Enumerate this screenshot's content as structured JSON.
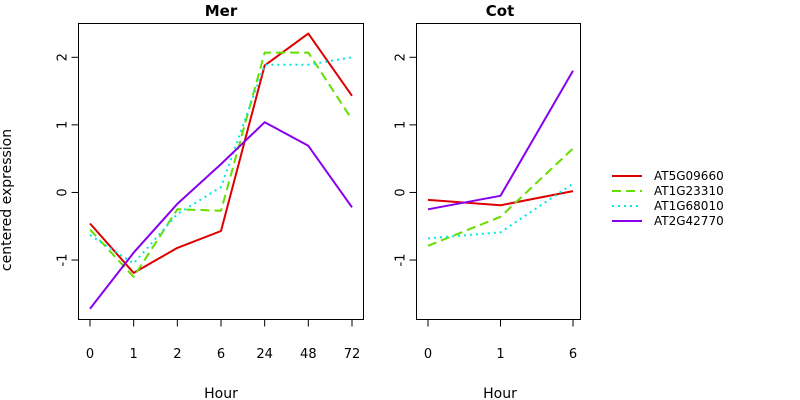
{
  "chart_data": [
    {
      "type": "line",
      "title": "Mer",
      "xlabel": "Hour",
      "ylabel": "centered expression",
      "categories": [
        "0",
        "1",
        "2",
        "6",
        "24",
        "48",
        "72"
      ],
      "yticks": [
        "-1",
        "0",
        "1",
        "2"
      ],
      "ylim": [
        -1.88,
        2.5
      ],
      "series": [
        {
          "name": "AT5G09660",
          "values": [
            -0.46,
            -1.19,
            -0.82,
            -0.57,
            1.88,
            2.35,
            1.43
          ]
        },
        {
          "name": "AT1G23310",
          "values": [
            -0.55,
            -1.25,
            -0.25,
            -0.27,
            2.07,
            2.07,
            1.08
          ]
        },
        {
          "name": "AT1G68010",
          "values": [
            -0.63,
            -1.05,
            -0.32,
            0.08,
            1.89,
            1.89,
            2.0
          ]
        },
        {
          "name": "AT2G42770",
          "values": [
            -1.72,
            -0.89,
            -0.17,
            0.42,
            1.04,
            0.69,
            -0.22
          ]
        }
      ]
    },
    {
      "type": "line",
      "title": "Cot",
      "xlabel": "Hour",
      "categories": [
        "0",
        "1",
        "6"
      ],
      "yticks": [
        "-1",
        "0",
        "1",
        "2"
      ],
      "ylim": [
        -1.88,
        2.5
      ],
      "series": [
        {
          "name": "AT5G09660",
          "values": [
            -0.11,
            -0.19,
            0.02
          ]
        },
        {
          "name": "AT1G23310",
          "values": [
            -0.79,
            -0.36,
            0.65
          ]
        },
        {
          "name": "AT1G68010",
          "values": [
            -0.68,
            -0.59,
            0.13
          ]
        },
        {
          "name": "AT2G42770",
          "values": [
            -0.25,
            -0.05,
            1.8
          ]
        }
      ]
    }
  ],
  "legend": {
    "placement": "right",
    "entries": [
      "AT5G09660",
      "AT1G23310",
      "AT1G68010",
      "AT2G42770"
    ]
  },
  "series_styles": [
    {
      "color": "#dd0000",
      "dash": "none"
    },
    {
      "color": "#66dd00",
      "dash": "9,5"
    },
    {
      "color": "#00e6e6",
      "dash": "2,4"
    },
    {
      "color": "#8800ee",
      "dash": "none"
    }
  ]
}
